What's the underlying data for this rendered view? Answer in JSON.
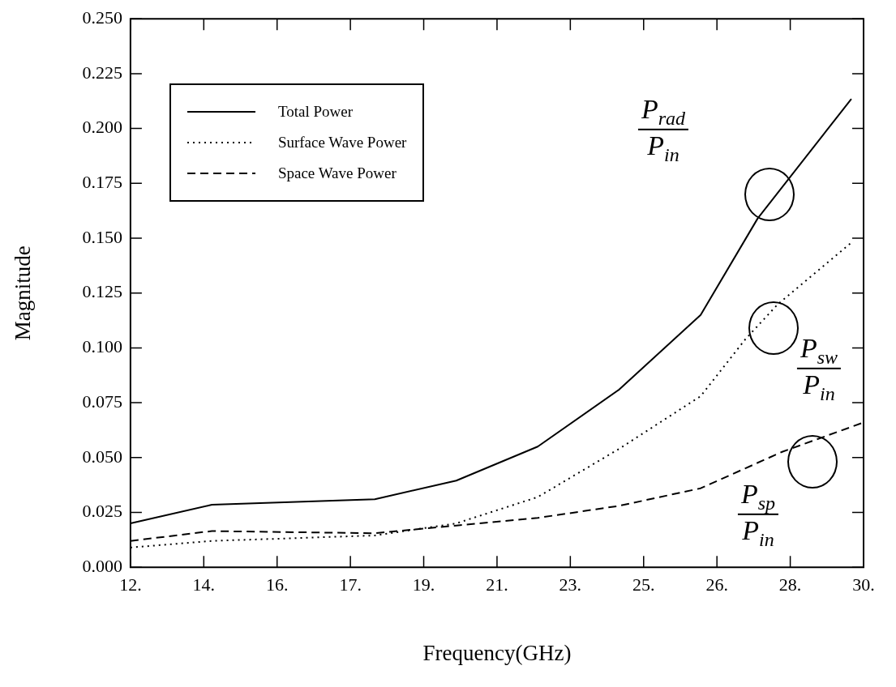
{
  "chart_data": {
    "type": "line",
    "xlabel": "Frequency(GHz)",
    "ylabel": "Magnitude",
    "xlim": [
      12,
      30
    ],
    "xticks": [
      {
        "value": 12,
        "label": "12."
      },
      {
        "value": 13.8,
        "label": "14."
      },
      {
        "value": 15.6,
        "label": "16."
      },
      {
        "value": 17.4,
        "label": "17."
      },
      {
        "value": 19.2,
        "label": "19."
      },
      {
        "value": 21,
        "label": "21."
      },
      {
        "value": 22.8,
        "label": "23."
      },
      {
        "value": 24.6,
        "label": "25."
      },
      {
        "value": 26.4,
        "label": "26."
      },
      {
        "value": 28.2,
        "label": "28."
      },
      {
        "value": 30,
        "label": "30."
      }
    ],
    "ylim": [
      0,
      0.25
    ],
    "yticks": [
      {
        "value": 0,
        "label": "0.000"
      },
      {
        "value": 0.025,
        "label": "0.025"
      },
      {
        "value": 0.05,
        "label": "0.050"
      },
      {
        "value": 0.075,
        "label": "0.075"
      },
      {
        "value": 0.1,
        "label": "0.100"
      },
      {
        "value": 0.125,
        "label": "0.125"
      },
      {
        "value": 0.15,
        "label": "0.150"
      },
      {
        "value": 0.175,
        "label": "0.175"
      },
      {
        "value": 0.2,
        "label": "0.200"
      },
      {
        "value": 0.225,
        "label": "0.225"
      },
      {
        "value": 0.25,
        "label": "0.250"
      }
    ],
    "series": [
      {
        "name": "Total Power",
        "color": "#000000",
        "line_style": "solid",
        "x": [
          12,
          14,
          18,
          20,
          22,
          24,
          26,
          27.4,
          29.7
        ],
        "values": [
          0.02,
          0.0285,
          0.031,
          0.0395,
          0.055,
          0.081,
          0.115,
          0.159,
          0.2135
        ]
      },
      {
        "name": "Surface Wave Power",
        "color": "#000000",
        "line_style": "dotted",
        "x": [
          12,
          14,
          18,
          20,
          22,
          24,
          26,
          27.1,
          27.9,
          29.7
        ],
        "values": [
          0.009,
          0.012,
          0.0145,
          0.02,
          0.032,
          0.054,
          0.078,
          0.104,
          0.12,
          0.148
        ]
      },
      {
        "name": "Space Wave Power",
        "color": "#000000",
        "line_style": "dashed",
        "x": [
          12,
          14,
          18,
          20,
          22,
          24,
          26,
          28,
          30
        ],
        "values": [
          0.012,
          0.0165,
          0.0155,
          0.019,
          0.0225,
          0.028,
          0.036,
          0.0526,
          0.066
        ]
      }
    ],
    "annotations": [
      "P$_{rad}$\nP$_{in}$",
      "P$_{sw}$\nP$_{in}$",
      "P$_{sp}$\nP$_{in}$"
    ],
    "marker": "none",
    "grid": false,
    "legend": "top left"
  }
}
